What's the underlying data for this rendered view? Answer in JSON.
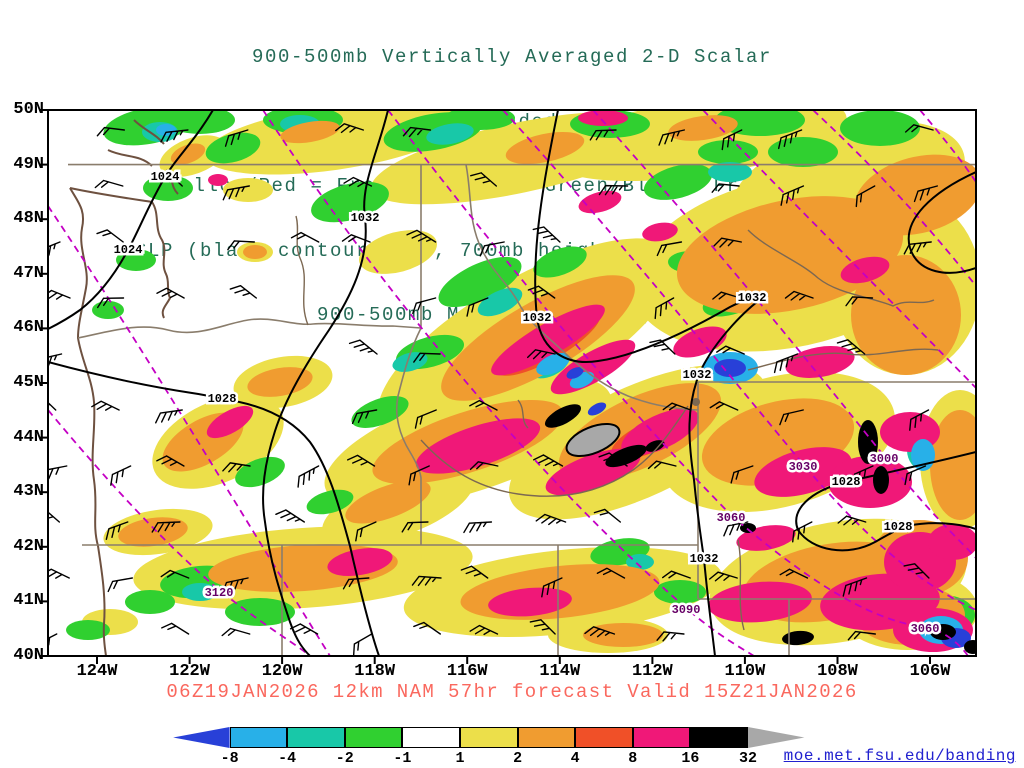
{
  "title": {
    "lines": [
      "900-500mb Vertically Averaged 2-D Scalar",
      "Frontogenesis (shaded, K/6hr/100km)",
      "Yellow/Red = Frontogenesis;  Green/Blue = Frontolysis",
      "MSLP (black contour, mb), 700mb height (purple contour, m) &",
      "900-500mb Mean Wind (barb, kt)"
    ],
    "color": "#256b57"
  },
  "axes": {
    "lat": [
      "50N",
      "49N",
      "48N",
      "47N",
      "46N",
      "45N",
      "44N",
      "43N",
      "42N",
      "41N",
      "40N"
    ],
    "lon": [
      "124W",
      "122W",
      "120W",
      "118W",
      "116W",
      "114W",
      "112W",
      "110W",
      "108W",
      "106W"
    ]
  },
  "map": {
    "contour_labels": [
      {
        "text": "1024"
      },
      {
        "text": "1024"
      },
      {
        "text": "1032"
      },
      {
        "text": "1032"
      },
      {
        "text": "1032"
      },
      {
        "text": "1032"
      },
      {
        "text": "1028"
      },
      {
        "text": "1028"
      },
      {
        "text": "1028"
      },
      {
        "text": "1032"
      },
      {
        "text": "3030"
      },
      {
        "text": "3000"
      },
      {
        "text": "3060"
      },
      {
        "text": "3060"
      },
      {
        "text": "3090"
      },
      {
        "text": "3120"
      }
    ]
  },
  "footer": {
    "text": "06Z19JAN2026 12km NAM 57hr forecast Valid 15Z21JAN2026",
    "color": "#fa685e"
  },
  "colorbar": {
    "ticks": [
      "-8",
      "-4",
      "-2",
      "-1",
      "1",
      "2",
      "4",
      "8",
      "16",
      "32"
    ],
    "colors": [
      "#2840d8",
      "#28b0e8",
      "#18c8a8",
      "#30d030",
      "#ffffff",
      "#ecdf4a",
      "#f09c30",
      "#f05028",
      "#f01878",
      "#000000",
      "#a8a8a8"
    ]
  },
  "link": {
    "text": "moe.met.fsu.edu/banding",
    "color": "#2121cf"
  },
  "chart_data": {
    "type": "heatmap",
    "title": "900-500mb Vertically Averaged 2-D Scalar Frontogenesis",
    "shading_units": "K/6hr/100km",
    "shading_bins": [
      -8,
      -4,
      -2,
      -1,
      1,
      2,
      4,
      8,
      16,
      32
    ],
    "bin_colors": [
      "#2840d8",
      "#28b0e8",
      "#18c8a8",
      "#30d030",
      "#ffffff",
      "#ecdf4a",
      "#f09c30",
      "#f05028",
      "#f01878",
      "#000000",
      "#a8a8a8"
    ],
    "positive_meaning": "Yellow/Red = Frontogenesis",
    "negative_meaning": "Green/Blue = Frontolysis",
    "overlays": [
      "MSLP (black contour, mb)",
      "700mb height (purple contour, m)",
      "900-500mb Mean Wind (barb, kt)"
    ],
    "lat_ticks": [
      "50N",
      "49N",
      "48N",
      "47N",
      "46N",
      "45N",
      "44N",
      "43N",
      "42N",
      "41N",
      "40N"
    ],
    "lon_ticks": [
      "124W",
      "122W",
      "120W",
      "118W",
      "116W",
      "114W",
      "112W",
      "110W",
      "108W",
      "106W"
    ],
    "mslp_contour_labels_mb": [
      1024,
      1024,
      1032,
      1032,
      1032,
      1032,
      1028,
      1028,
      1028,
      1032
    ],
    "height700_contour_labels_m": [
      3000,
      3030,
      3060,
      3060,
      3090,
      3120
    ],
    "model": "12km NAM",
    "init_time": "06Z19JAN2026",
    "forecast_hour": "57hr",
    "valid_time": "15Z21JAN2026"
  }
}
